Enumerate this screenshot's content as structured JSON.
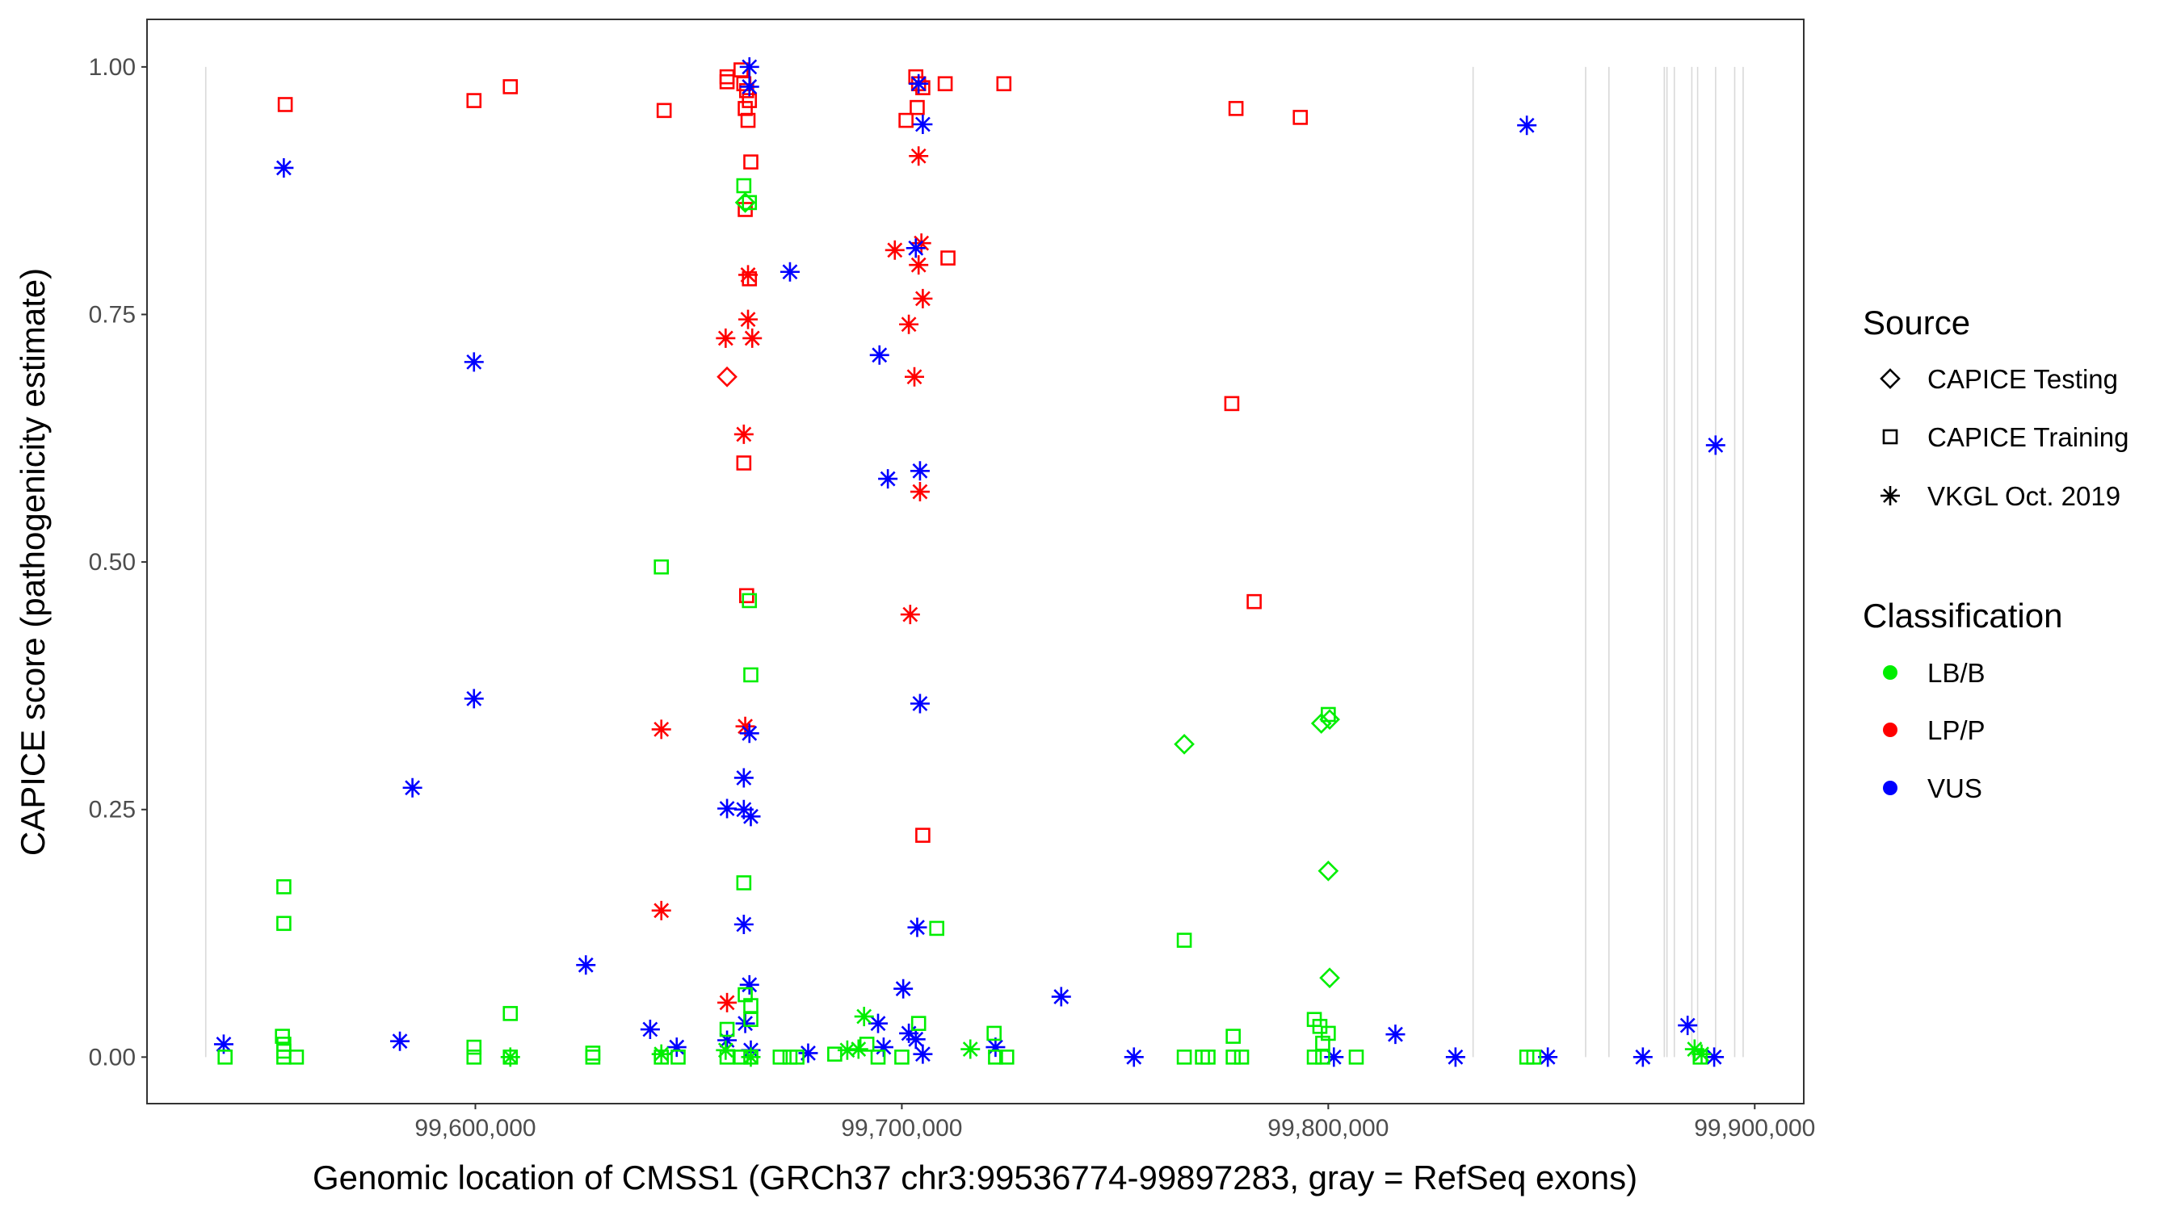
{
  "chart_data": {
    "type": "scatter",
    "title": "",
    "xlabel": "Genomic location of CMSS1 (GRCh37 chr3:99536774-99897283, gray = RefSeq exons)",
    "ylabel": "CAPICE score (pathogenicity estimate)",
    "xlim": [
      99523000,
      99911500
    ],
    "ylim": [
      -0.047,
      1.048
    ],
    "x_ticks": [
      99600000,
      99700000,
      99800000,
      99900000
    ],
    "x_tick_labels": [
      "99,600,000",
      "99,700,000",
      "99,800,000",
      "99,900,000"
    ],
    "y_ticks": [
      0,
      0.25,
      0.5,
      0.75,
      1.0
    ],
    "y_tick_labels": [
      "0.00",
      "0.25",
      "0.50",
      "0.75",
      "1.00"
    ],
    "grid": false,
    "exon_lines_color": "#d9d9d9",
    "exon_positions": [
      99536774,
      99833960,
      99860350,
      99865810,
      99878800,
      99879420,
      99881150,
      99885250,
      99886610,
      99890830,
      99895300,
      99897283
    ],
    "legend_placement": "right",
    "legend": {
      "source_title": "Source",
      "sources": [
        {
          "label": "CAPICE Testing",
          "shape": "diamond"
        },
        {
          "label": "CAPICE Training",
          "shape": "square"
        },
        {
          "label": "VKGL Oct. 2019",
          "shape": "asterisk"
        }
      ],
      "classification_title": "Classification",
      "classifications": [
        {
          "label": "LB/B",
          "color": "#00ee00"
        },
        {
          "label": "LP/P",
          "color": "#ff0000"
        },
        {
          "label": "VUS",
          "color": "#0000ff"
        }
      ]
    },
    "series": [
      {
        "source": "CAPICE Training",
        "classification": "LP/P",
        "points": [
          [
            99555410,
            0.962
          ],
          [
            99599672,
            0.966
          ],
          [
            99608197,
            0.98
          ],
          [
            99644262,
            0.956
          ],
          [
            99659017,
            0.99
          ],
          [
            99659017,
            0.985
          ],
          [
            99662295,
            0.997
          ],
          [
            99662951,
            0.983
          ],
          [
            99663607,
            0.976
          ],
          [
            99664262,
            0.966
          ],
          [
            99663279,
            0.958
          ],
          [
            99663934,
            0.946
          ],
          [
            99664590,
            0.904
          ],
          [
            99663279,
            0.856
          ],
          [
            99664262,
            0.786
          ],
          [
            99662951,
            0.6
          ],
          [
            99663607,
            0.466
          ],
          [
            99703279,
            0.99
          ],
          [
            99703934,
            0.983
          ],
          [
            99704918,
            0.979
          ],
          [
            99703607,
            0.959
          ],
          [
            99700984,
            0.946
          ],
          [
            99710164,
            0.983
          ],
          [
            99723935,
            0.983
          ],
          [
            99710820,
            0.807
          ],
          [
            99704918,
            0.224
          ],
          [
            99778361,
            0.958
          ],
          [
            99793443,
            0.949
          ],
          [
            99777378,
            0.66
          ],
          [
            99782624,
            0.46
          ]
        ]
      },
      {
        "source": "VKGL Oct. 2019",
        "classification": "LP/P",
        "points": [
          [
            99663934,
            0.79
          ],
          [
            99663934,
            0.745
          ],
          [
            99658689,
            0.726
          ],
          [
            99664918,
            0.726
          ],
          [
            99662951,
            0.629
          ],
          [
            99643607,
            0.331
          ],
          [
            99663279,
            0.334
          ],
          [
            99643607,
            0.148
          ],
          [
            99659017,
            0.055
          ],
          [
            99698361,
            0.815
          ],
          [
            99703934,
            0.91
          ],
          [
            99704590,
            0.822
          ],
          [
            99703934,
            0.8
          ],
          [
            99704918,
            0.766
          ],
          [
            99701640,
            0.74
          ],
          [
            99702951,
            0.687
          ],
          [
            99704262,
            0.571
          ],
          [
            99701967,
            0.447
          ]
        ]
      },
      {
        "source": "CAPICE Testing",
        "classification": "LP/P",
        "points": [
          [
            99659017,
            0.687
          ]
        ]
      },
      {
        "source": "VKGL Oct. 2019",
        "classification": "VUS",
        "points": [
          [
            99555082,
            0.898
          ],
          [
            99599672,
            0.702
          ],
          [
            99599672,
            0.362
          ],
          [
            99585246,
            0.272
          ],
          [
            99540983,
            0.013
          ],
          [
            99582295,
            0.016
          ],
          [
            99625902,
            0.093
          ],
          [
            99640984,
            0.028
          ],
          [
            99647213,
            0.01
          ],
          [
            99673771,
            0.793
          ],
          [
            99664262,
            1.0
          ],
          [
            99664262,
            0.98
          ],
          [
            99664262,
            0.327
          ],
          [
            99662951,
            0.282
          ],
          [
            99659017,
            0.251
          ],
          [
            99662951,
            0.25
          ],
          [
            99664590,
            0.243
          ],
          [
            99662951,
            0.134
          ],
          [
            99664262,
            0.073
          ],
          [
            99663279,
            0.034
          ],
          [
            99659017,
            0.017
          ],
          [
            99664590,
            0.007
          ],
          [
            99678033,
            0.004
          ],
          [
            99694755,
            0.709
          ],
          [
            99696722,
            0.584
          ],
          [
            99704262,
            0.592
          ],
          [
            99703279,
            0.817
          ],
          [
            99704918,
            0.942
          ],
          [
            99703934,
            0.983
          ],
          [
            99704262,
            0.357
          ],
          [
            99703607,
            0.131
          ],
          [
            99700328,
            0.069
          ],
          [
            99694427,
            0.034
          ],
          [
            99701640,
            0.024
          ],
          [
            99703279,
            0.018
          ],
          [
            99695738,
            0.01
          ],
          [
            99704918,
            0.003
          ],
          [
            99721968,
            0.01
          ],
          [
            99737378,
            0.061
          ],
          [
            99754427,
            0.0
          ],
          [
            99801312,
            0.0
          ],
          [
            99815738,
            0.023
          ],
          [
            99829837,
            0.0
          ],
          [
            99846558,
            0.941
          ],
          [
            99851476,
            0.0
          ],
          [
            99873771,
            0.0
          ],
          [
            99884263,
            0.032
          ],
          [
            99890821,
            0.618
          ],
          [
            99890493,
            0.0
          ]
        ]
      },
      {
        "source": "CAPICE Training",
        "classification": "LB/B",
        "points": [
          [
            99541311,
            0.0
          ],
          [
            99555082,
            0.172
          ],
          [
            99555082,
            0.135
          ],
          [
            99554754,
            0.021
          ],
          [
            99555082,
            0.013
          ],
          [
            99555082,
            0.006
          ],
          [
            99555082,
            0.0
          ],
          [
            99558033,
            0.0
          ],
          [
            99599672,
            0.01
          ],
          [
            99599672,
            0.0
          ],
          [
            99608197,
            0.044
          ],
          [
            99608197,
            0.0
          ],
          [
            99627541,
            0.004
          ],
          [
            99627541,
            0.0
          ],
          [
            99643607,
            0.495
          ],
          [
            99643607,
            0.0
          ],
          [
            99647541,
            0.0
          ],
          [
            99662951,
            0.88
          ],
          [
            99664262,
            0.863
          ],
          [
            99664262,
            0.461
          ],
          [
            99664590,
            0.386
          ],
          [
            99662951,
            0.176
          ],
          [
            99663279,
            0.063
          ],
          [
            99664590,
            0.052
          ],
          [
            99659017,
            0.028
          ],
          [
            99664590,
            0.038
          ],
          [
            99659017,
            0.0
          ],
          [
            99662295,
            0.0
          ],
          [
            99664590,
            0.0
          ],
          [
            99671476,
            0.0
          ],
          [
            99673771,
            0.0
          ],
          [
            99675410,
            0.0
          ],
          [
            99684263,
            0.003
          ],
          [
            99691804,
            0.013
          ],
          [
            99694427,
            0.0
          ],
          [
            99700000,
            0.0
          ],
          [
            99703934,
            0.034
          ],
          [
            99708197,
            0.13
          ],
          [
            99721640,
            0.024
          ],
          [
            99721968,
            0.0
          ],
          [
            99724591,
            0.0
          ],
          [
            99766230,
            0.118
          ],
          [
            99766230,
            0.0
          ],
          [
            99770492,
            0.0
          ],
          [
            99771804,
            0.0
          ],
          [
            99777706,
            0.021
          ],
          [
            99777706,
            0.0
          ],
          [
            99779673,
            0.0
          ],
          [
            99796722,
            0.038
          ],
          [
            99798033,
            0.031
          ],
          [
            99798689,
            0.014
          ],
          [
            99800000,
            0.024
          ],
          [
            99796722,
            0.0
          ],
          [
            99798689,
            0.0
          ],
          [
            99800000,
            0.346
          ],
          [
            99806558,
            0.0
          ],
          [
            99846558,
            0.0
          ],
          [
            99848197,
            0.0
          ],
          [
            99887213,
            0.0
          ]
        ]
      },
      {
        "source": "VKGL Oct. 2019",
        "classification": "LB/B",
        "points": [
          [
            99608197,
            0.0
          ],
          [
            99643607,
            0.003
          ],
          [
            99658689,
            0.007
          ],
          [
            99664590,
            0.0
          ],
          [
            99689836,
            0.008
          ],
          [
            99691148,
            0.041
          ],
          [
            99687213,
            0.007
          ],
          [
            99716066,
            0.008
          ],
          [
            99885902,
            0.008
          ],
          [
            99887541,
            0.003
          ]
        ]
      },
      {
        "source": "CAPICE Testing",
        "classification": "LB/B",
        "points": [
          [
            99663279,
            0.863
          ],
          [
            99766230,
            0.316
          ],
          [
            99798361,
            0.337
          ],
          [
            99800328,
            0.341
          ],
          [
            99800000,
            0.188
          ],
          [
            99800328,
            0.08
          ]
        ]
      }
    ]
  }
}
